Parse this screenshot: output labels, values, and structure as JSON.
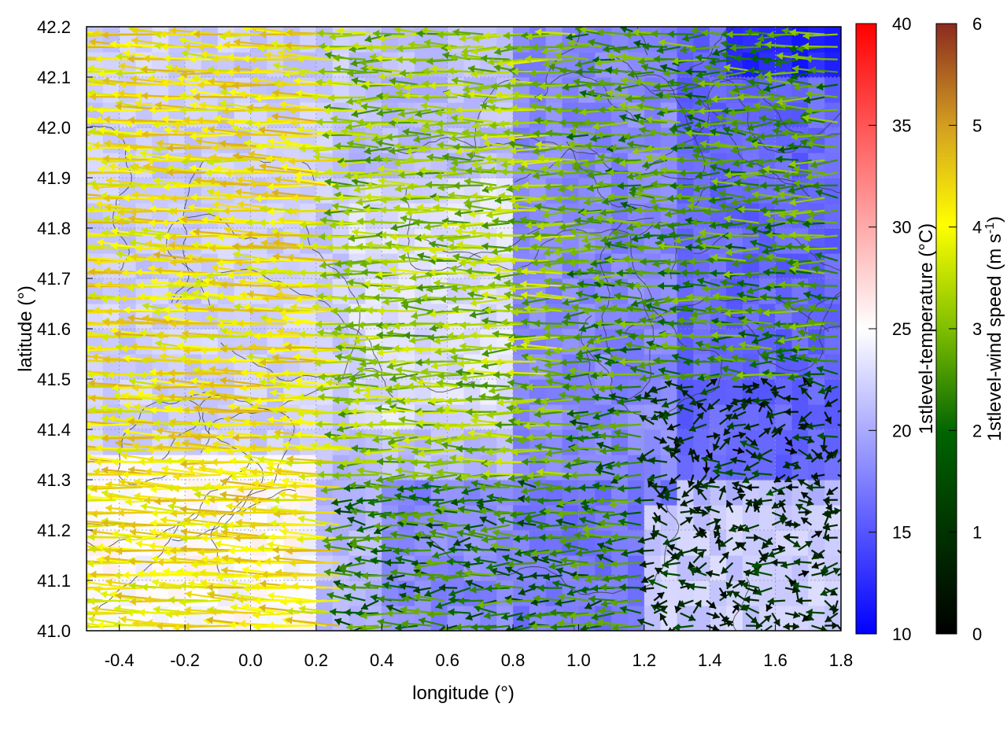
{
  "chart_data": {
    "type": "heatmap",
    "subtype": "temperature field with wind vectors and contours",
    "xlabel": "longitude (°)",
    "ylabel": "latitude (°)",
    "xlim": [
      -0.5,
      1.8
    ],
    "ylim": [
      41.0,
      42.2
    ],
    "x_ticks": [
      -0.4,
      -0.2,
      0.0,
      0.2,
      0.4,
      0.6,
      0.8,
      1.0,
      1.2,
      1.4,
      1.6,
      1.8
    ],
    "y_ticks": [
      41.0,
      41.1,
      41.2,
      41.3,
      41.4,
      41.5,
      41.6,
      41.7,
      41.8,
      41.9,
      42.0,
      42.1,
      42.2
    ],
    "x_tick_labels": [
      "-0.4",
      "-0.2",
      "0.0",
      "0.2",
      "0.4",
      "0.6",
      "0.8",
      "1.0",
      "1.2",
      "1.4",
      "1.6",
      "1.8"
    ],
    "y_tick_labels": [
      "41.0",
      "41.1",
      "41.2",
      "41.3",
      "41.4",
      "41.5",
      "41.6",
      "41.7",
      "41.8",
      "41.9",
      "42.0",
      "42.1",
      "42.2"
    ],
    "grid": true,
    "temperature_colorbar": {
      "label": "1stlevel-temperature (°C)",
      "range": [
        10,
        40
      ],
      "ticks": [
        10,
        15,
        20,
        25,
        30,
        35,
        40
      ],
      "tick_labels": [
        "10",
        "15",
        "20",
        "25",
        "30",
        "35",
        "40"
      ],
      "colors": [
        "#0000ff",
        "#ffffff",
        "#ff0000"
      ]
    },
    "wind_colorbar": {
      "label_main": "1stlevel-wind speed (m s",
      "label_sup": "-1",
      "label_end": ")",
      "range": [
        0,
        6
      ],
      "ticks": [
        0,
        1,
        2,
        3,
        4,
        5,
        6
      ],
      "tick_labels": [
        "0",
        "1",
        "2",
        "3",
        "4",
        "5",
        "6"
      ],
      "colors": [
        "#000000",
        "#006400",
        "#7fbf00",
        "#ffff00",
        "#d4a020",
        "#8b2a20"
      ]
    },
    "temperature_regions": [
      {
        "x": [
          -0.5,
          0.2
        ],
        "y": [
          41.0,
          41.35
        ],
        "temp": 25
      },
      {
        "x": [
          -0.5,
          0.3
        ],
        "y": [
          41.35,
          42.2
        ],
        "temp": 22
      },
      {
        "x": [
          0.3,
          0.8
        ],
        "y": [
          41.4,
          41.9
        ],
        "temp": 23
      },
      {
        "x": [
          0.8,
          1.3
        ],
        "y": [
          41.3,
          42.2
        ],
        "temp": 18
      },
      {
        "x": [
          1.3,
          1.8
        ],
        "y": [
          41.3,
          42.2
        ],
        "temp": 16
      },
      {
        "x": [
          1.45,
          1.8
        ],
        "y": [
          42.1,
          42.2
        ],
        "temp": 12
      },
      {
        "x": [
          0.8,
          1.3
        ],
        "y": [
          41.0,
          41.3
        ],
        "temp": 17
      },
      {
        "x": [
          1.2,
          1.8
        ],
        "y": [
          41.0,
          41.25
        ],
        "temp": 22
      },
      {
        "x": [
          0.4,
          0.8
        ],
        "y": [
          41.0,
          41.3
        ],
        "temp": 18
      }
    ],
    "wind_field_description_regions": [
      {
        "x": [
          -0.5,
          0.3
        ],
        "y": [
          41.0,
          42.2
        ],
        "u": -3.8,
        "v": 0.2
      },
      {
        "x": [
          0.3,
          1.0
        ],
        "y": [
          41.3,
          42.2
        ],
        "u": -2.5,
        "v": 0.0
      },
      {
        "x": [
          1.0,
          1.8
        ],
        "y": [
          41.5,
          42.2
        ],
        "u": -1.8,
        "v": 0.0
      },
      {
        "x": [
          1.2,
          1.8
        ],
        "y": [
          41.0,
          41.5
        ],
        "u": -0.2,
        "v": 0.0
      }
    ]
  }
}
